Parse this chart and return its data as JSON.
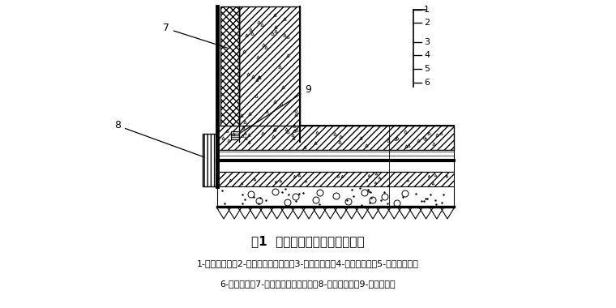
{
  "title": "图1  地下室聚氨酯涂膜防水构造",
  "caption_line1": "1-混凝土底板；2-细石混凝土保护层；3-涂膜防水层；4-砂浆找平层；5-混凝土垫层；",
  "caption_line2": "6-素土夸实；7-挤塑聚苯乙烯泡沫板；8-砖砖模板墙；9-钉板止水带",
  "bg_color": "#ffffff",
  "text_color": "#000000",
  "line_color": "#000000"
}
